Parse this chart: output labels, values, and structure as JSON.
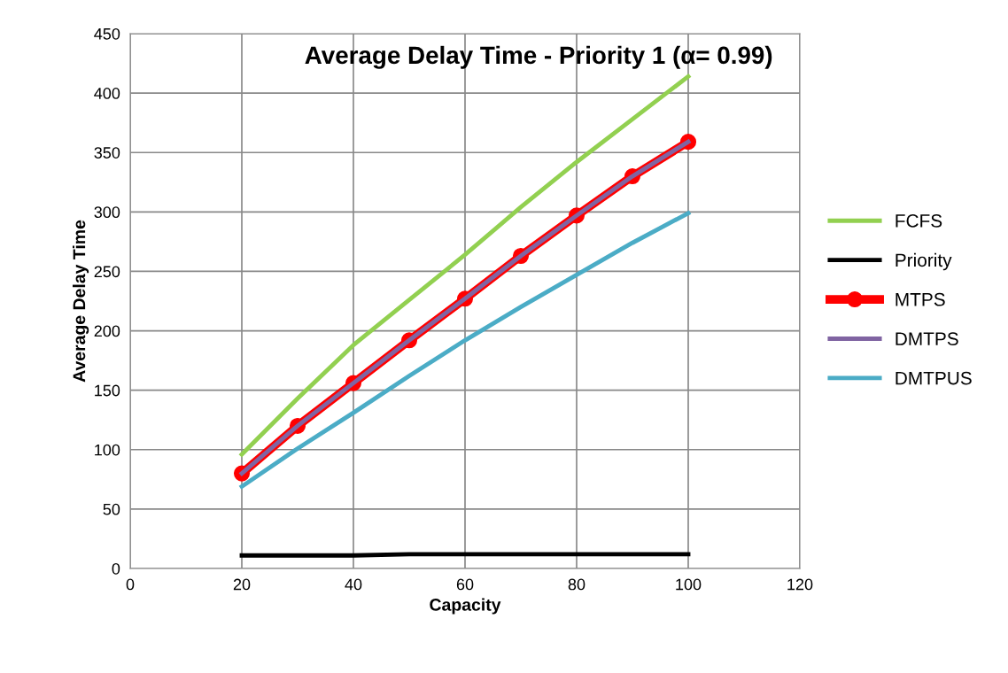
{
  "chart_data": {
    "type": "line",
    "title": "Average Delay Time - Priority 1 (α= 0.99)",
    "xlabel": "Capacity",
    "ylabel": "Average Delay Time",
    "x": [
      20,
      30,
      40,
      50,
      60,
      70,
      80,
      90,
      100
    ],
    "series": [
      {
        "name": "FCFS",
        "color": "#92d050",
        "values": [
          96,
          143,
          188,
          226,
          264,
          304,
          342,
          378,
          414
        ]
      },
      {
        "name": "Priority",
        "color": "#000000",
        "values": [
          11,
          11,
          11,
          12,
          12,
          12,
          12,
          12,
          12
        ]
      },
      {
        "name": "MTPS",
        "color": "#ff0000",
        "marker": "circle",
        "values": [
          80,
          120,
          156,
          192,
          227,
          263,
          297,
          330,
          359
        ]
      },
      {
        "name": "DMTPS",
        "color": "#8064a2",
        "values": [
          80,
          120,
          156,
          192,
          227,
          263,
          297,
          330,
          359
        ]
      },
      {
        "name": "DMTPUS",
        "color": "#4bacc6",
        "values": [
          69,
          101,
          131,
          162,
          192,
          220,
          247,
          274,
          299
        ]
      }
    ],
    "xlim": [
      0,
      120
    ],
    "xticks": [
      0,
      20,
      40,
      60,
      80,
      100,
      120
    ],
    "ylim": [
      0,
      450
    ],
    "yticks": [
      0,
      50,
      100,
      150,
      200,
      250,
      300,
      350,
      400,
      450
    ],
    "grid": true,
    "legend": "right",
    "line_style": "solid"
  }
}
